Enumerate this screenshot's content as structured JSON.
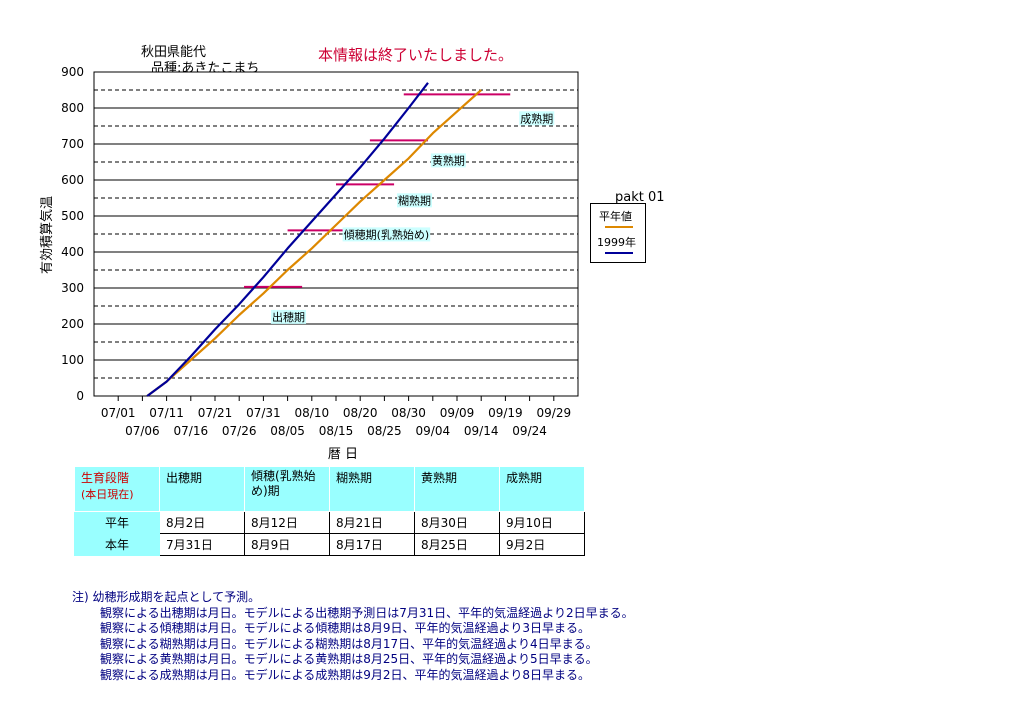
{
  "header": {
    "location": "秋田県能代",
    "variety": "品種:あきたこまち",
    "notice": "本情報は終了いたしました。"
  },
  "legend": {
    "title": "pakt 01",
    "normal_label": "平年値",
    "year_label": "1999年"
  },
  "colors": {
    "normal_line": "#dd8800",
    "year_line": "#000099",
    "stage_line": "#cc0066",
    "stage_label_bg": "#ccffff",
    "notice_text": "#cc0033",
    "notes_text": "#000080"
  },
  "chart_data": {
    "type": "line",
    "xlabel": "暦 日",
    "ylabel": "有効積算気温",
    "ylim": [
      0,
      900
    ],
    "yticks": [
      0,
      100,
      200,
      300,
      400,
      500,
      600,
      700,
      800,
      900
    ],
    "grid": "solid at 100s, dashed at 50s",
    "x_tick_labels_top": [
      "07/01",
      "07/11",
      "07/21",
      "07/31",
      "08/10",
      "08/20",
      "08/30",
      "09/09",
      "09/19",
      "09/29"
    ],
    "x_tick_labels_bottom": [
      "07/06",
      "07/16",
      "07/26",
      "08/05",
      "08/15",
      "08/25",
      "09/04",
      "09/14",
      "09/24"
    ],
    "series": [
      {
        "name": "平年値",
        "x": [
          "07/07",
          "07/11",
          "07/16",
          "07/21",
          "07/26",
          "07/31",
          "08/05",
          "08/10",
          "08/15",
          "08/20",
          "08/25",
          "08/30",
          "09/04",
          "09/09",
          "09/14"
        ],
        "y": [
          0,
          40,
          100,
          160,
          225,
          285,
          350,
          410,
          475,
          540,
          600,
          660,
          730,
          790,
          850
        ]
      },
      {
        "name": "1999年",
        "x": [
          "07/07",
          "07/11",
          "07/16",
          "07/21",
          "07/26",
          "07/31",
          "08/05",
          "08/10",
          "08/15",
          "08/20",
          "08/25",
          "08/30",
          "09/03"
        ],
        "y": [
          0,
          40,
          110,
          185,
          255,
          330,
          410,
          485,
          560,
          635,
          715,
          800,
          870
        ]
      }
    ],
    "stages": [
      {
        "name": "出穂期",
        "y": 303,
        "x_start": "07/27",
        "x_end": "08/08"
      },
      {
        "name": "傾穂期(乳熟始め)",
        "y": 460,
        "x_start": "08/05",
        "x_end": "08/17"
      },
      {
        "name": "糊熟期",
        "y": 588,
        "x_start": "08/15",
        "x_end": "08/27"
      },
      {
        "name": "黄熟期",
        "y": 710,
        "x_start": "08/22",
        "x_end": "09/03"
      },
      {
        "name": "成熟期",
        "y": 838,
        "x_start": "08/29",
        "x_end": "09/20"
      }
    ]
  },
  "table": {
    "corner_label": "生育段階",
    "corner_sub": "(本日現在)",
    "columns": [
      "出穂期",
      "傾穂(乳熟始め)期",
      "糊熟期",
      "黄熟期",
      "成熟期"
    ],
    "rows": [
      {
        "label": "平年",
        "values": [
          "8月2日",
          "8月12日",
          "8月21日",
          "8月30日",
          "9月10日"
        ]
      },
      {
        "label": "本年",
        "values": [
          "7月31日",
          "8月9日",
          "8月17日",
          "8月25日",
          "9月2日"
        ]
      }
    ]
  },
  "notes": {
    "intro": "注) 幼穂形成期を起点として予測。",
    "lines": [
      "観察による出穂期は月日。モデルによる出穂期予測日は7月31日、平年的気温経過より2日早まる。",
      "観察による傾穂期は月日。モデルによる傾穂期は8月9日、平年的気温経過より3日早まる。",
      "観察による糊熟期は月日。モデルによる糊熟期は8月17日、平年的気温経過より4日早まる。",
      "観察による黄熟期は月日。モデルによる黄熟期は8月25日、平年的気温経過より5日早まる。",
      "観察による成熟期は月日。モデルによる成熟期は9月2日、平年的気温経過より8日早まる。"
    ]
  }
}
